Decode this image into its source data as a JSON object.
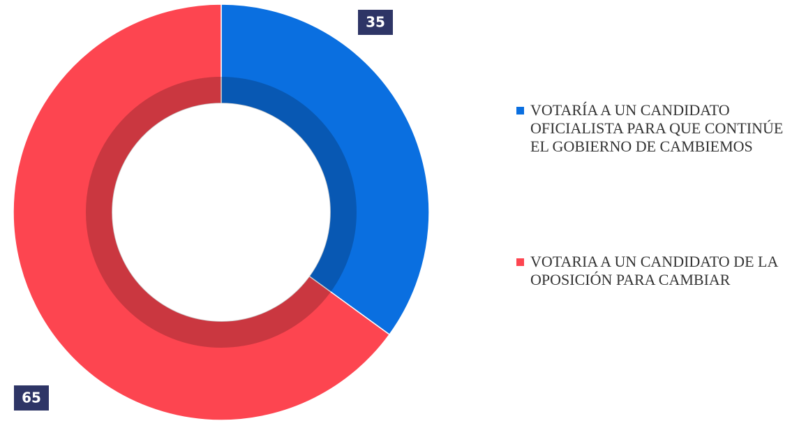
{
  "chart_data": {
    "type": "donut",
    "categories": [
      "VOTARÍA A UN CANDIDATO OFICIALISTA PARA QUE CONTINÚE EL GOBIERNO DE CAMBIEMOS",
      "VOTARIA A UN CANDIDATO DE LA OPOSICIÓN PARA CAMBIAR"
    ],
    "values": [
      35,
      65
    ],
    "colors": [
      "#0a6fe0",
      "#fd4550"
    ],
    "legend": "right"
  }
}
